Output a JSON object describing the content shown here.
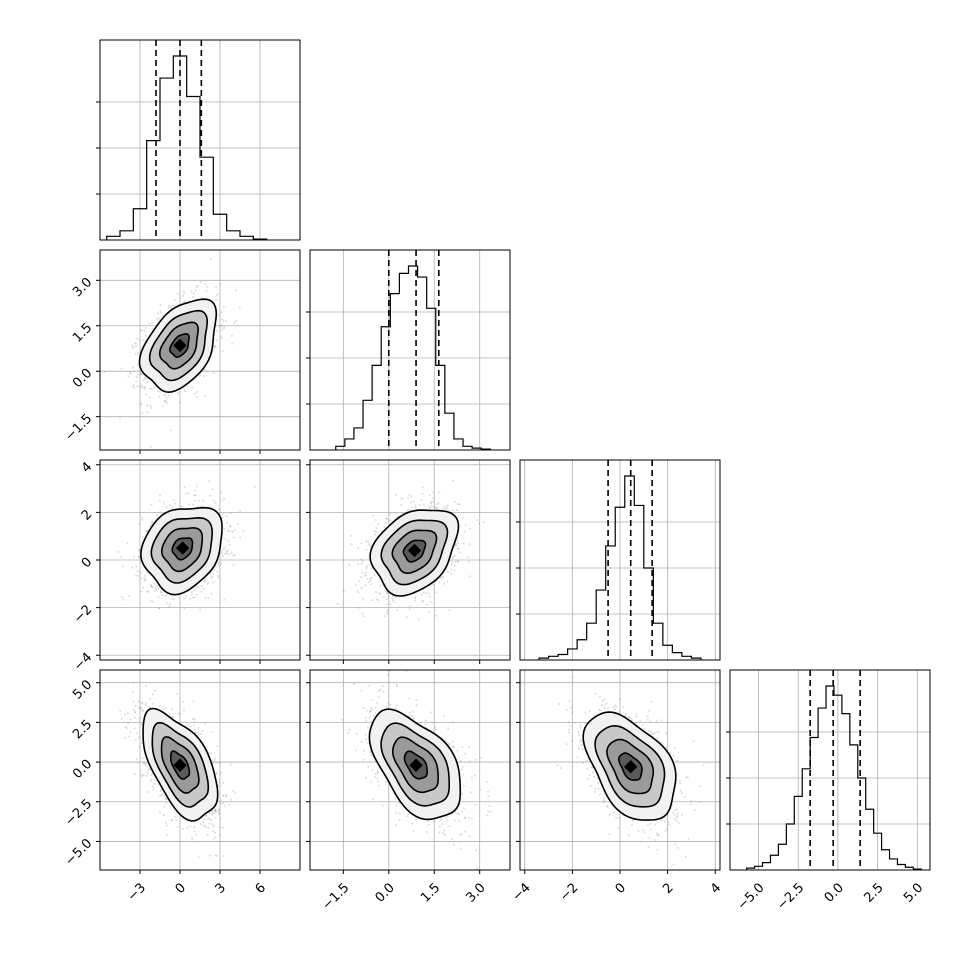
{
  "chart_data": {
    "type": "corner",
    "grid": true,
    "quantile_lines": "dashed",
    "n_params": 4,
    "params": [
      {
        "index": 0,
        "range": [
          -6,
          9
        ],
        "ticks": [
          -3,
          0,
          3,
          6
        ],
        "tick_labels": [
          "−3",
          "0",
          "3",
          "6"
        ],
        "quantiles": [
          -1.8,
          0.0,
          1.6
        ],
        "hist_bins": [
          -5,
          -4,
          -3,
          -2,
          -1,
          0,
          1,
          2,
          3,
          4,
          5,
          6
        ],
        "hist_counts": [
          0.02,
          0.05,
          0.17,
          0.54,
          0.88,
          1.0,
          0.78,
          0.45,
          0.14,
          0.05,
          0.02,
          0.005
        ]
      },
      {
        "index": 1,
        "range": [
          -2.6,
          4.0
        ],
        "ticks": [
          -1.5,
          0.0,
          1.5,
          3.0
        ],
        "tick_labels": [
          "−1.5",
          "0.0",
          "1.5",
          "3.0"
        ],
        "quantiles": [
          0.0,
          0.9,
          1.65
        ],
        "hist_bins": [
          -1.6,
          -1.3,
          -1.0,
          -0.7,
          -0.4,
          -0.1,
          0.2,
          0.5,
          0.8,
          1.1,
          1.4,
          1.7,
          2.0,
          2.3,
          2.6,
          2.9,
          3.2
        ],
        "hist_counts": [
          0.02,
          0.06,
          0.12,
          0.27,
          0.46,
          0.67,
          0.85,
          0.96,
          1.0,
          0.94,
          0.77,
          0.46,
          0.2,
          0.06,
          0.02,
          0.01,
          0.005
        ]
      },
      {
        "index": 2,
        "range": [
          -4.2,
          4.2
        ],
        "ticks": [
          -4,
          -2,
          0,
          2,
          4
        ],
        "tick_labels": [
          "−4",
          "−2",
          "0",
          "2",
          "4"
        ],
        "quantiles": [
          -0.5,
          0.45,
          1.35
        ],
        "hist_bins": [
          -3.2,
          -2.8,
          -2.4,
          -2.0,
          -1.6,
          -1.2,
          -0.8,
          -0.4,
          0.0,
          0.4,
          0.8,
          1.2,
          1.6,
          2.0,
          2.4,
          2.8,
          3.2
        ],
        "hist_counts": [
          0.01,
          0.02,
          0.03,
          0.06,
          0.11,
          0.2,
          0.38,
          0.62,
          0.83,
          1.0,
          0.84,
          0.5,
          0.2,
          0.08,
          0.04,
          0.02,
          0.01
        ]
      },
      {
        "index": 3,
        "range": [
          -6.8,
          5.8
        ],
        "ticks": [
          -5.0,
          -2.5,
          0.0,
          2.5,
          5.0
        ],
        "tick_labels": [
          "−5.0",
          "−2.5",
          "0.0",
          "2.5",
          "5.0"
        ],
        "quantiles": [
          -1.75,
          -0.3,
          1.4
        ],
        "hist_bins": [
          -5.5,
          -5.0,
          -4.5,
          -4.0,
          -3.5,
          -3.0,
          -2.5,
          -2.0,
          -1.5,
          -1.0,
          -0.5,
          0.0,
          0.5,
          1.0,
          1.5,
          2.0,
          2.5,
          3.0,
          3.5,
          4.0,
          4.5,
          5.0
        ],
        "hist_counts": [
          0.01,
          0.02,
          0.04,
          0.08,
          0.14,
          0.25,
          0.4,
          0.55,
          0.72,
          0.88,
          1.0,
          0.95,
          0.85,
          0.68,
          0.5,
          0.33,
          0.2,
          0.11,
          0.06,
          0.03,
          0.015,
          0.005
        ]
      }
    ],
    "pairs": [
      {
        "row": 1,
        "col": 0,
        "mean": [
          0.0,
          0.85
        ],
        "std": [
          1.4,
          0.75
        ],
        "corr": 0.4
      },
      {
        "row": 2,
        "col": 0,
        "mean": [
          0.2,
          0.5
        ],
        "std": [
          1.5,
          0.9
        ],
        "corr": 0.2
      },
      {
        "row": 2,
        "col": 1,
        "mean": [
          0.85,
          0.4
        ],
        "std": [
          0.7,
          0.9
        ],
        "corr": 0.3
      },
      {
        "row": 3,
        "col": 0,
        "mean": [
          0.0,
          -0.2
        ],
        "std": [
          1.4,
          1.7
        ],
        "corr": -0.55
      },
      {
        "row": 3,
        "col": 1,
        "mean": [
          0.9,
          -0.2
        ],
        "std": [
          0.75,
          1.7
        ],
        "corr": -0.5
      },
      {
        "row": 3,
        "col": 2,
        "mean": [
          0.45,
          -0.3
        ],
        "std": [
          0.95,
          1.7
        ],
        "corr": -0.45
      }
    ]
  }
}
